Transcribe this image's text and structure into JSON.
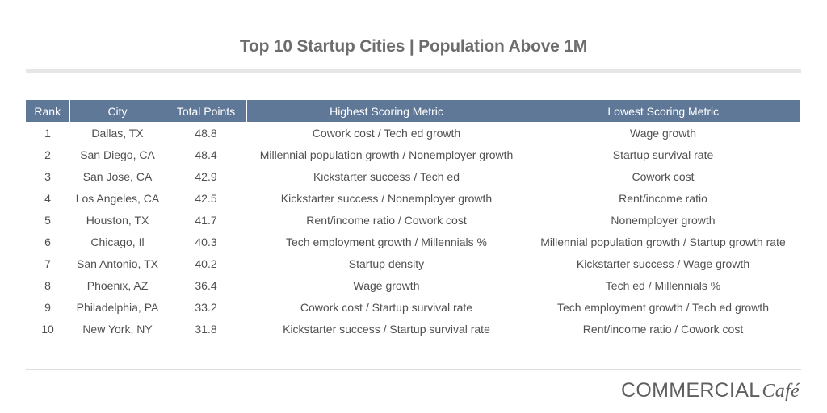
{
  "title": "Top 10 Startup Cities | Population Above 1M",
  "logo": {
    "main": "COMMERCIAL",
    "script": "Café"
  },
  "colors": {
    "header_bg": "#607898",
    "header_text": "#ffffff",
    "title": "#6d6d6d"
  },
  "chart_data": {
    "type": "table",
    "title": "Top 10 Startup Cities | Population Above 1M",
    "columns": [
      "Rank",
      "City",
      "Total Points",
      "Highest Scoring Metric",
      "Lowest Scoring Metric"
    ],
    "rows": [
      [
        "1",
        "Dallas, TX",
        "48.8",
        "Cowork cost / Tech ed growth",
        "Wage growth"
      ],
      [
        "2",
        "San Diego, CA",
        "48.4",
        "Millennial population growth / Nonemployer growth",
        "Startup survival rate"
      ],
      [
        "3",
        "San Jose, CA",
        "42.9",
        "Kickstarter success / Tech ed",
        "Cowork cost"
      ],
      [
        "4",
        "Los Angeles, CA",
        "42.5",
        "Kickstarter success / Nonemployer growth",
        "Rent/income ratio"
      ],
      [
        "5",
        "Houston, TX",
        "41.7",
        "Rent/income ratio / Cowork cost",
        "Nonemployer growth"
      ],
      [
        "6",
        "Chicago, Il",
        "40.3",
        "Tech employment growth / Millennials %",
        "Millennial population growth / Startup growth rate"
      ],
      [
        "7",
        "San Antonio, TX",
        "40.2",
        "Startup density",
        "Kickstarter success / Wage growth"
      ],
      [
        "8",
        "Phoenix, AZ",
        "36.4",
        "Wage growth",
        "Tech ed / Millennials %"
      ],
      [
        "9",
        "Philadelphia, PA",
        "33.2",
        "Cowork cost / Startup survival rate",
        "Tech employment growth / Tech ed growth"
      ],
      [
        "10",
        "New York, NY",
        "31.8",
        "Kickstarter success / Startup survival rate",
        "Rent/income ratio / Cowork cost"
      ]
    ]
  }
}
